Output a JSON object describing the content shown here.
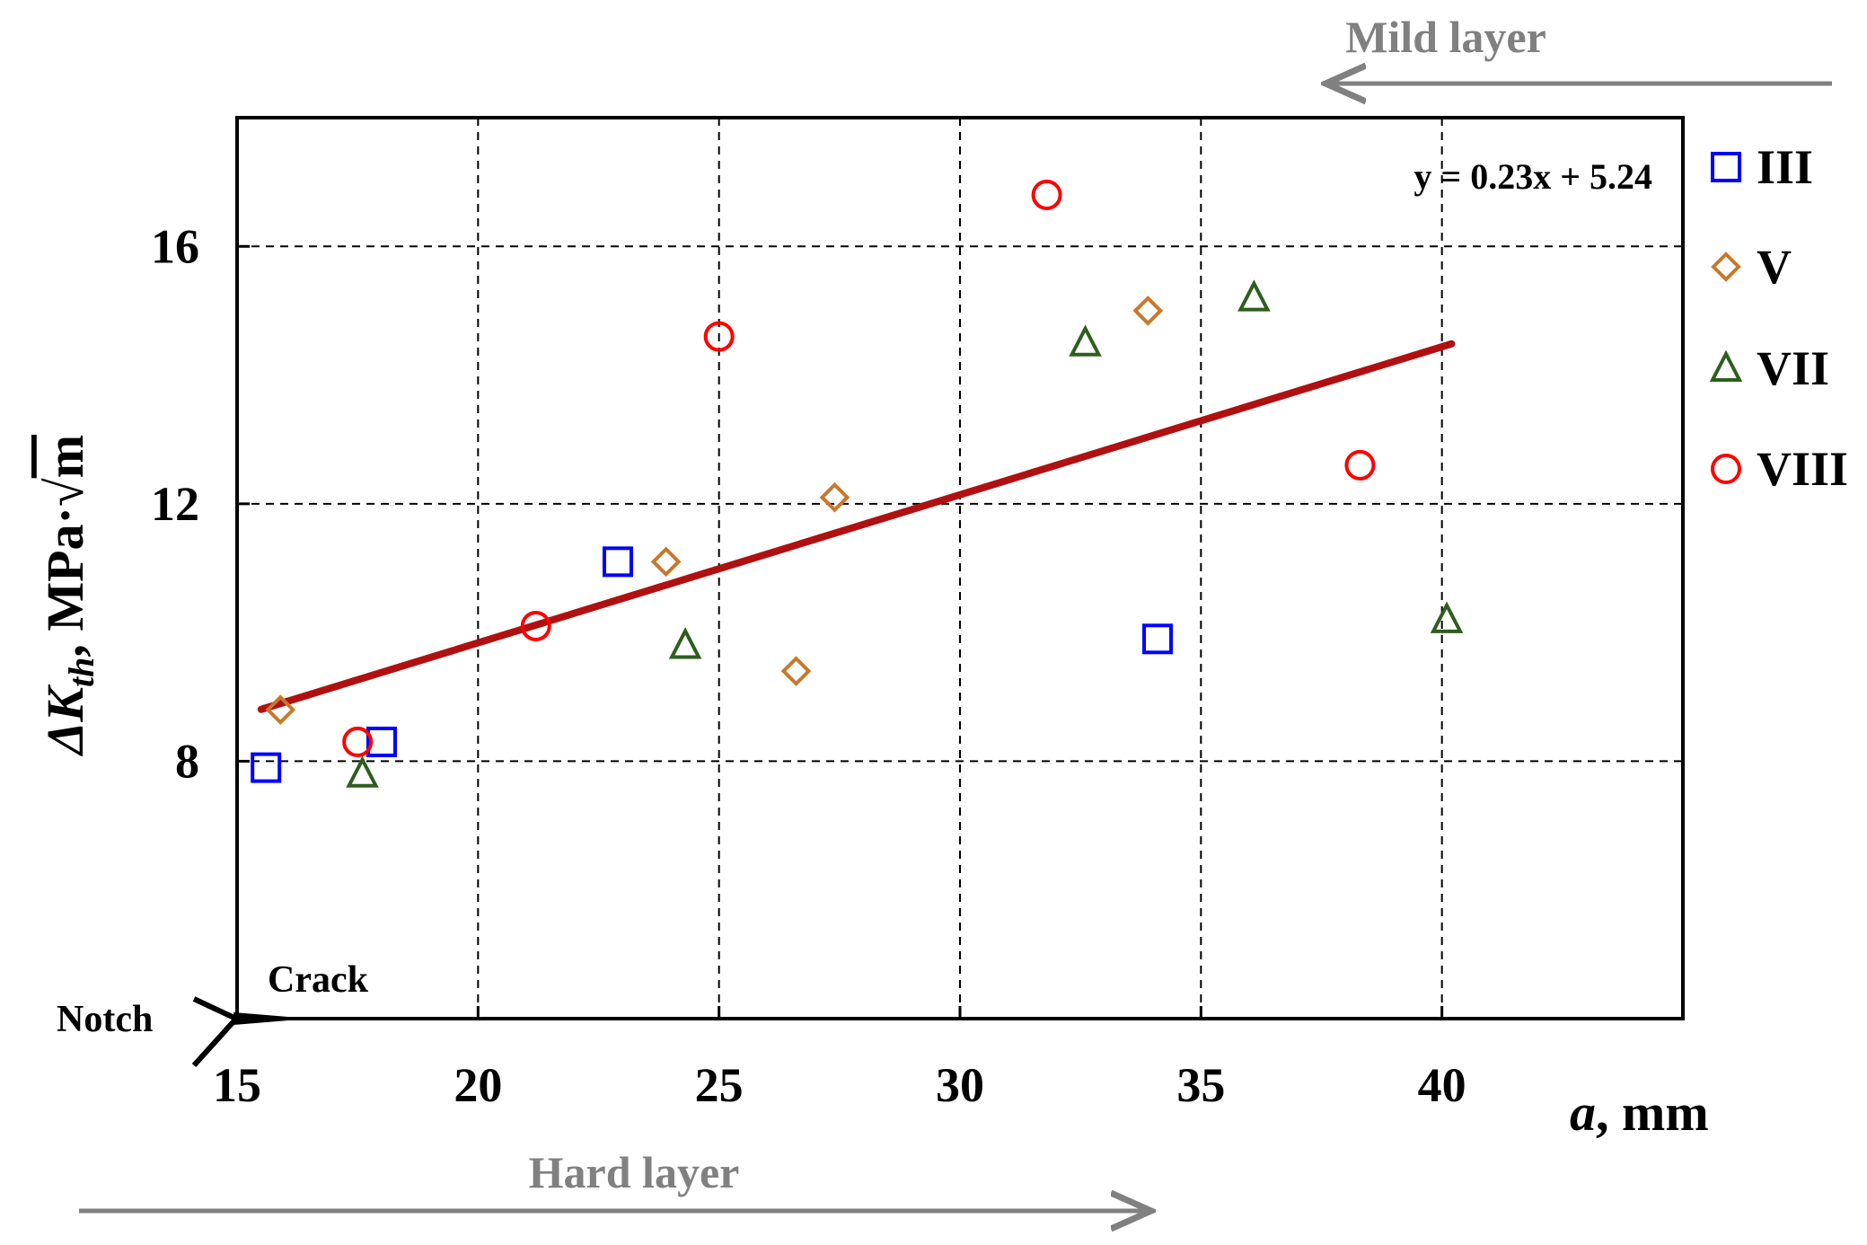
{
  "chart_data": {
    "type": "scatter",
    "xlabel": {
      "italic": "a",
      "rest": ", mm"
    },
    "ylabel": {
      "prefix": "ΔK",
      "sub": "th",
      "suffix": ", MPa·",
      "root": "m"
    },
    "xlim": [
      15,
      45
    ],
    "ylim": [
      4,
      18
    ],
    "x_ticks": [
      15,
      20,
      25,
      30,
      35,
      40
    ],
    "y_ticks": [
      8,
      12,
      16
    ],
    "grid": true,
    "legend_position": "right",
    "series": [
      {
        "name": "III",
        "marker": "square",
        "color": "#0000ff",
        "points": [
          [
            15.6,
            7.9
          ],
          [
            18.0,
            8.3
          ],
          [
            22.9,
            11.1
          ],
          [
            34.1,
            9.9
          ]
        ]
      },
      {
        "name": "V",
        "marker": "diamond",
        "color": "#c8782a",
        "points": [
          [
            15.9,
            8.8
          ],
          [
            23.9,
            11.1
          ],
          [
            27.4,
            12.1
          ],
          [
            26.6,
            9.4
          ],
          [
            33.9,
            15.0
          ]
        ]
      },
      {
        "name": "VII",
        "marker": "triangle",
        "color": "#2e5e1e",
        "points": [
          [
            17.6,
            7.8
          ],
          [
            24.3,
            9.8
          ],
          [
            32.6,
            14.5
          ],
          [
            36.1,
            15.2
          ],
          [
            40.1,
            10.2
          ]
        ]
      },
      {
        "name": "VIII",
        "marker": "circle",
        "color": "#ff0000",
        "points": [
          [
            17.5,
            8.3
          ],
          [
            21.2,
            10.1
          ],
          [
            25.0,
            14.6
          ],
          [
            31.8,
            16.8
          ],
          [
            38.3,
            12.6
          ]
        ]
      }
    ],
    "trendline": {
      "equation": "y = 0.23x + 5.24",
      "slope": 0.23,
      "intercept": 5.24,
      "x_range": [
        15.5,
        40.2
      ],
      "color": "#b01010"
    },
    "annotations": {
      "mild_layer": "Mild layer",
      "hard_layer": "Hard layer",
      "crack": "Crack",
      "notch": "Notch"
    }
  }
}
